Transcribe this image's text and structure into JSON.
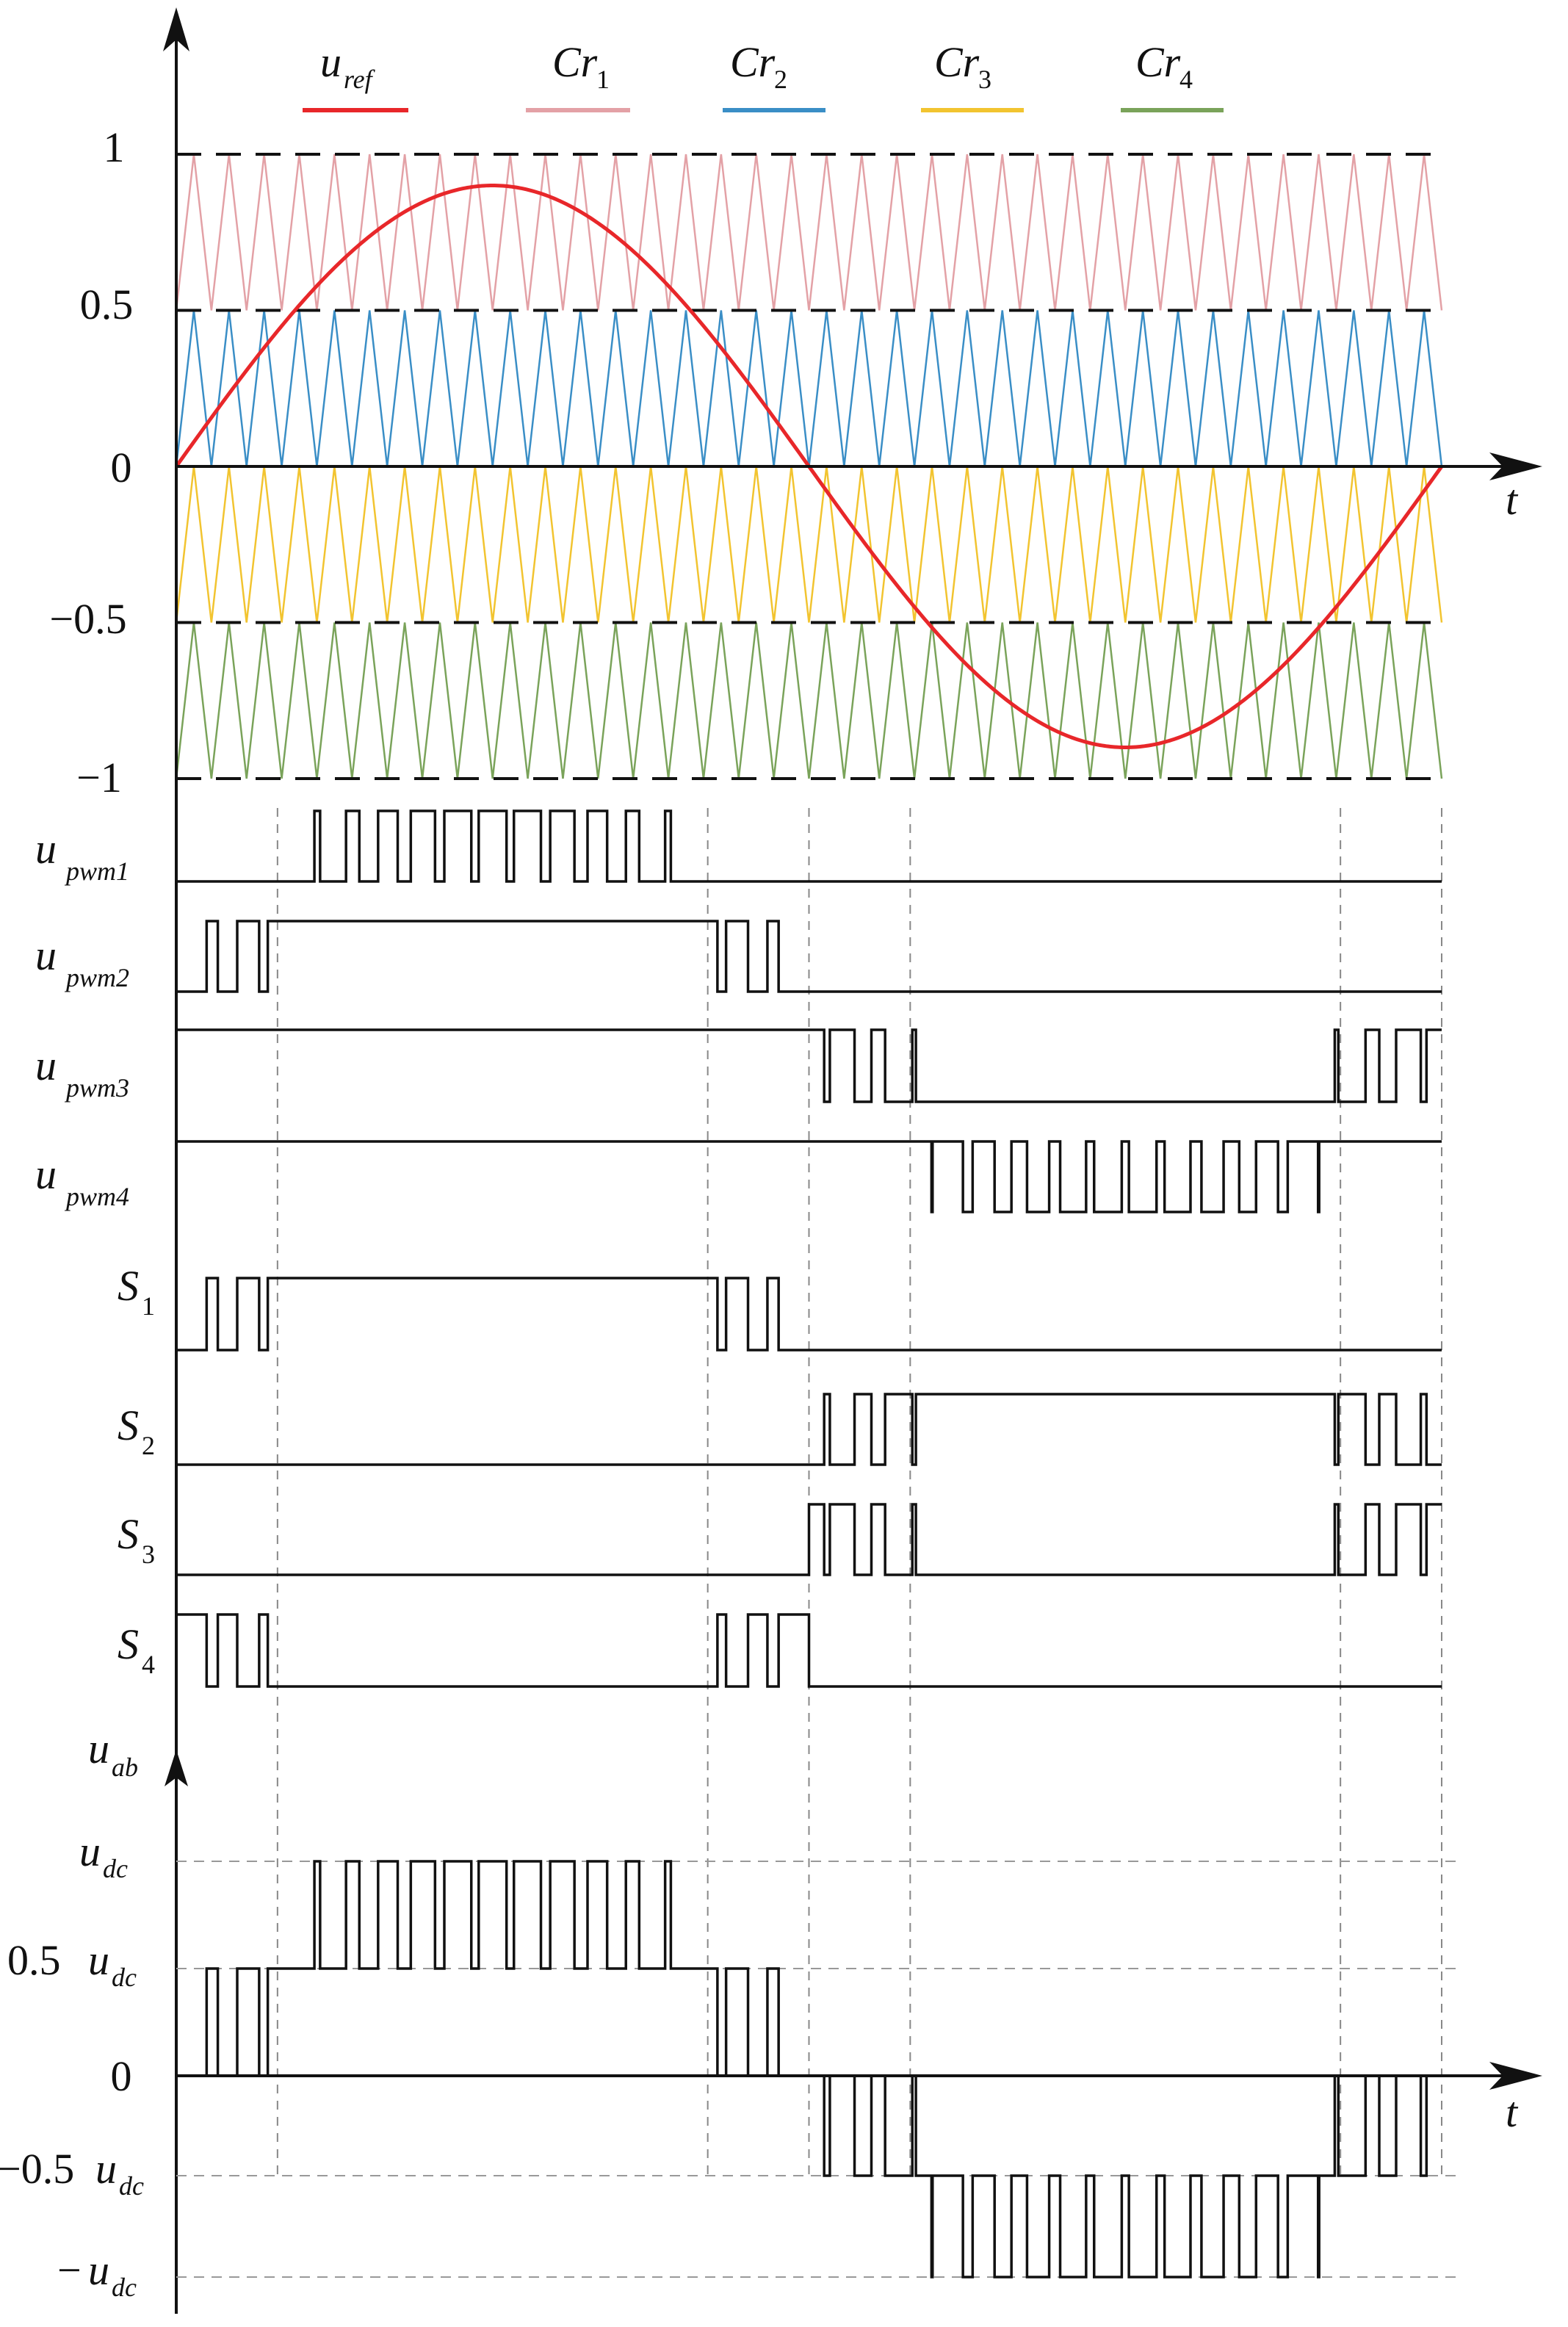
{
  "legend": [
    {
      "main": "u",
      "sub": "ref",
      "color": "#e8272a"
    },
    {
      "main": "Cr",
      "sub": "1",
      "color": "#e3a1a6"
    },
    {
      "main": "Cr",
      "sub": "2",
      "color": "#3a8ec6"
    },
    {
      "main": "Cr",
      "sub": "3",
      "color": "#f2c430"
    },
    {
      "main": "Cr",
      "sub": "4",
      "color": "#7aa35a"
    }
  ],
  "top_axis": {
    "ticks": [
      "1",
      "0.5",
      "0",
      "−0.5",
      "−1"
    ],
    "t_label": "t"
  },
  "signals": [
    {
      "main": "u",
      "sub": "pwm1"
    },
    {
      "main": "u",
      "sub": "pwm2"
    },
    {
      "main": "u",
      "sub": "pwm3"
    },
    {
      "main": "u",
      "sub": "pwm4"
    },
    {
      "main": "S",
      "sub": "1"
    },
    {
      "main": "S",
      "sub": "2"
    },
    {
      "main": "S",
      "sub": "3"
    },
    {
      "main": "S",
      "sub": "4"
    }
  ],
  "bottom_axis": {
    "y_label_main": "u",
    "y_label_sub": "ab",
    "t_label": "t",
    "levels": [
      {
        "coef": "",
        "main": "u",
        "sub": "dc"
      },
      {
        "coef": "0.5",
        "main": "u",
        "sub": "dc"
      },
      {
        "coef": "0",
        "main": "",
        "sub": ""
      },
      {
        "coef": "−0.5",
        "main": "u",
        "sub": "dc"
      },
      {
        "coef": "−",
        "main": "u",
        "sub": "dc"
      }
    ]
  },
  "chart_data": {
    "type": "line",
    "title": "",
    "reference": {
      "name": "u_ref",
      "amplitude": 0.9,
      "periods": 1,
      "color": "#e8272a"
    },
    "carriers": [
      {
        "name": "Cr1",
        "min": 0.5,
        "max": 1.0,
        "color": "#e3a1a6"
      },
      {
        "name": "Cr2",
        "min": 0.0,
        "max": 0.5,
        "color": "#3a8ec6"
      },
      {
        "name": "Cr3",
        "min": -0.5,
        "max": 0.0,
        "color": "#f2c430"
      },
      {
        "name": "Cr4",
        "min": -1.0,
        "max": -0.5,
        "color": "#7aa35a"
      }
    ],
    "carrier_periods_per_fundamental": 36,
    "y_range": [
      -1,
      1
    ],
    "ticks": [
      1,
      0.5,
      0,
      -0.5,
      -1
    ],
    "output_levels": [
      1,
      0.5,
      0,
      -0.5,
      -1
    ]
  }
}
